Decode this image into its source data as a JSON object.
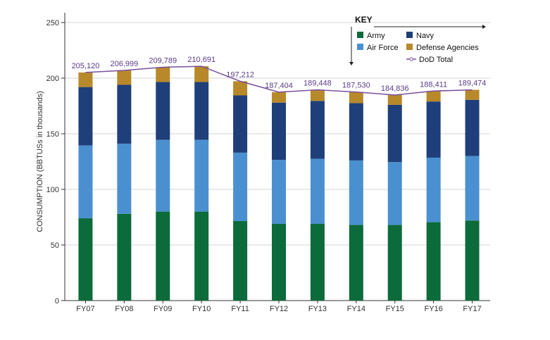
{
  "chart_data": {
    "type": "bar",
    "stacked": true,
    "title": "",
    "xlabel": "",
    "ylabel": "CONSUMPTION (BBTUSs in thousands)",
    "ylim": [
      0,
      250
    ],
    "yticks": [
      0,
      50,
      100,
      150,
      200,
      250
    ],
    "grid": true,
    "legend": {
      "title": "KEY",
      "position": "top-right",
      "entries": [
        "Army",
        "Navy",
        "Air Force",
        "Defense Agencies",
        "DoD Total"
      ]
    },
    "categories": [
      "FY07",
      "FY08",
      "FY09",
      "FY10",
      "FY11",
      "FY12",
      "FY13",
      "FY14",
      "FY15",
      "FY16",
      "FY17"
    ],
    "series": [
      {
        "name": "Army",
        "color": "#0b6b3a",
        "values": [
          74,
          78,
          80,
          80,
          71.5,
          69,
          69,
          68,
          68,
          70.5,
          72
        ]
      },
      {
        "name": "Air Force",
        "color": "#4a90d0",
        "values": [
          65.5,
          63,
          64.5,
          64.5,
          61.5,
          57.5,
          58.5,
          58,
          56.5,
          58,
          58
        ]
      },
      {
        "name": "Navy",
        "color": "#1f3f7a",
        "values": [
          52.5,
          53,
          52,
          52,
          51.5,
          51.5,
          52,
          51.5,
          51.5,
          50.5,
          50.5
        ]
      },
      {
        "name": "Defense Agencies",
        "color": "#b8892a",
        "values": [
          13.12,
          12.999,
          13.289,
          14.191,
          12.712,
          9.404,
          9.948,
          10.03,
          8.836,
          9.411,
          8.974
        ]
      }
    ],
    "total": {
      "name": "DoD Total",
      "color": "#7a4f9e",
      "values": [
        205.12,
        206.999,
        209.789,
        210.691,
        197.212,
        187.404,
        189.448,
        187.53,
        184.836,
        188.411,
        189.474
      ],
      "labels": [
        "205,120",
        "206,999",
        "209,789",
        "210,691",
        "197,212",
        "187,404",
        "189,448",
        "187,530",
        "184,836",
        "188,411",
        "189,474"
      ]
    }
  }
}
